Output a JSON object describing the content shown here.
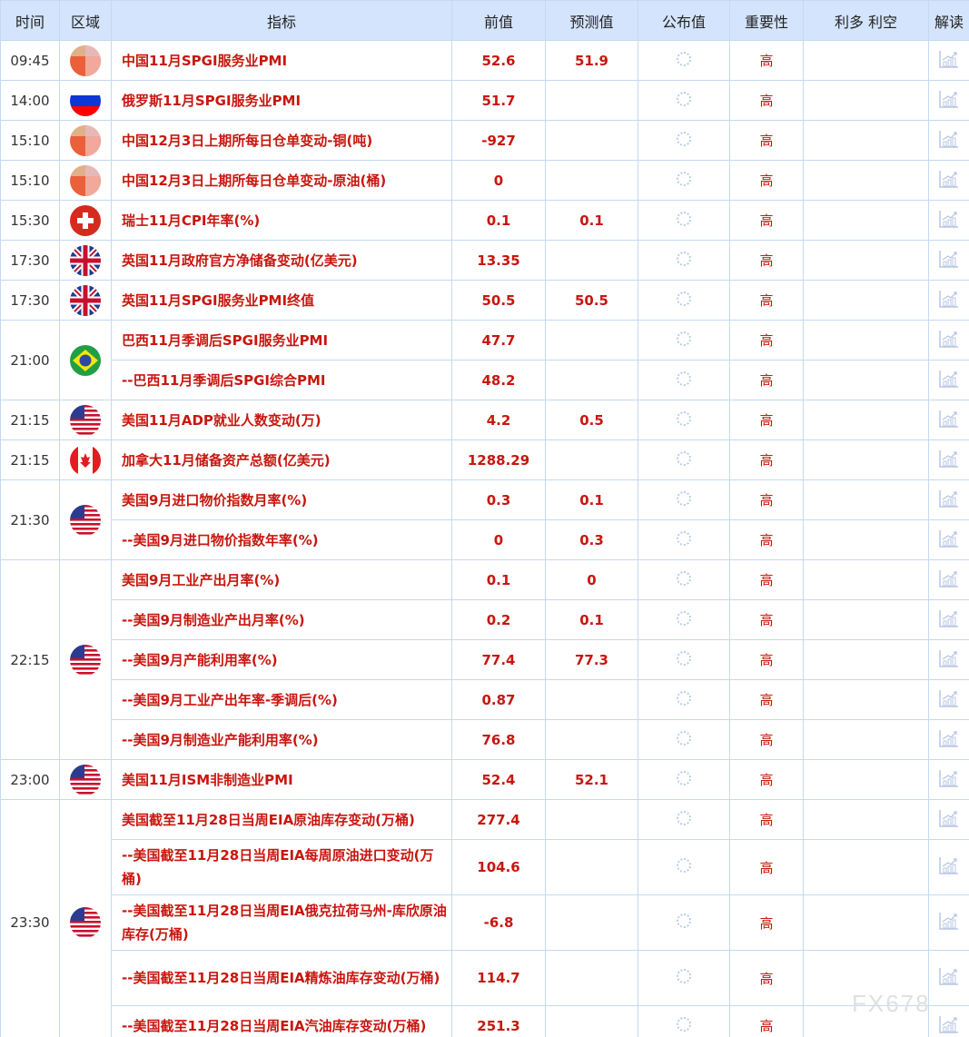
{
  "headers": [
    "时间",
    "区域",
    "指标",
    "前值",
    "预测值",
    "公布值",
    "重要性",
    "利多 利空",
    "解读"
  ],
  "colors": {
    "header_bg": "#d3e4fc",
    "border": "#c5d9f1",
    "accent_red": "#c8160e"
  },
  "groups": [
    {
      "time": "09:45",
      "flag": "china",
      "items": [
        {
          "name": "中国11月SPGI服务业PMI",
          "prev": "52.6",
          "fc": "51.9",
          "imp": "高"
        }
      ]
    },
    {
      "time": "14:00",
      "flag": "russia",
      "items": [
        {
          "name": "俄罗斯11月SPGI服务业PMI",
          "prev": "51.7",
          "fc": "",
          "imp": "高"
        }
      ]
    },
    {
      "time": "15:10",
      "flag": "china",
      "items": [
        {
          "name": "中国12月3日上期所每日仓单变动-铜(吨)",
          "prev": "-927",
          "fc": "",
          "imp": "高"
        }
      ]
    },
    {
      "time": "15:10",
      "flag": "china",
      "items": [
        {
          "name": "中国12月3日上期所每日仓单变动-原油(桶)",
          "prev": "0",
          "fc": "",
          "imp": "高"
        }
      ]
    },
    {
      "time": "15:30",
      "flag": "swiss",
      "items": [
        {
          "name": "瑞士11月CPI年率(%)",
          "prev": "0.1",
          "fc": "0.1",
          "imp": "高"
        }
      ]
    },
    {
      "time": "17:30",
      "flag": "uk",
      "items": [
        {
          "name": "英国11月政府官方净储备变动(亿美元)",
          "prev": "13.35",
          "fc": "",
          "imp": "高"
        }
      ]
    },
    {
      "time": "17:30",
      "flag": "uk",
      "items": [
        {
          "name": "英国11月SPGI服务业PMI终值",
          "prev": "50.5",
          "fc": "50.5",
          "imp": "高"
        }
      ]
    },
    {
      "time": "21:00",
      "flag": "brazil",
      "items": [
        {
          "name": "巴西11月季调后SPGI服务业PMI",
          "prev": "47.7",
          "fc": "",
          "imp": "高"
        },
        {
          "name": "--巴西11月季调后SPGI综合PMI",
          "prev": "48.2",
          "fc": "",
          "imp": "高"
        }
      ]
    },
    {
      "time": "21:15",
      "flag": "usa",
      "items": [
        {
          "name": "美国11月ADP就业人数变动(万)",
          "prev": "4.2",
          "fc": "0.5",
          "imp": "高"
        }
      ]
    },
    {
      "time": "21:15",
      "flag": "canada",
      "items": [
        {
          "name": "加拿大11月储备资产总额(亿美元)",
          "prev": "1288.29",
          "fc": "",
          "imp": "高"
        }
      ]
    },
    {
      "time": "21:30",
      "flag": "usa",
      "items": [
        {
          "name": "美国9月进口物价指数月率(%)",
          "prev": "0.3",
          "fc": "0.1",
          "imp": "高"
        },
        {
          "name": "--美国9月进口物价指数年率(%)",
          "prev": "0",
          "fc": "0.3",
          "imp": "高"
        }
      ]
    },
    {
      "time": "22:15",
      "flag": "usa",
      "items": [
        {
          "name": "美国9月工业产出月率(%)",
          "prev": "0.1",
          "fc": "0",
          "imp": "高"
        },
        {
          "name": "--美国9月制造业产出月率(%)",
          "prev": "0.2",
          "fc": "0.1",
          "imp": "高"
        },
        {
          "name": "--美国9月产能利用率(%)",
          "prev": "77.4",
          "fc": "77.3",
          "imp": "高"
        },
        {
          "name": "--美国9月工业产出年率-季调后(%)",
          "prev": "0.87",
          "fc": "",
          "imp": "高"
        },
        {
          "name": "--美国9月制造业产能利用率(%)",
          "prev": "76.8",
          "fc": "",
          "imp": "高"
        }
      ]
    },
    {
      "time": "23:00",
      "flag": "usa",
      "items": [
        {
          "name": "美国11月ISM非制造业PMI",
          "prev": "52.4",
          "fc": "52.1",
          "imp": "高"
        }
      ]
    },
    {
      "time": "23:30",
      "flag": "usa",
      "items": [
        {
          "name": "美国截至11月28日当周EIA原油库存变动(万桶)",
          "prev": "277.4",
          "fc": "",
          "imp": "高"
        },
        {
          "name": "--美国截至11月28日当周EIA每周原油进口变动(万桶)",
          "prev": "104.6",
          "fc": "",
          "imp": "高",
          "tall": true
        },
        {
          "name": "--美国截至11月28日当周EIA俄克拉荷马州-库欣原油库存(万桶)",
          "prev": "-6.8",
          "fc": "",
          "imp": "高",
          "tall": true
        },
        {
          "name": "--美国截至11月28日当周EIA精炼油库存变动(万桶)",
          "prev": "114.7",
          "fc": "",
          "imp": "高",
          "tall": true
        },
        {
          "name": "--美国截至11月28日当周EIA汽油库存变动(万桶)",
          "prev": "251.3",
          "fc": "",
          "imp": "高"
        }
      ]
    }
  ],
  "watermark": "FX678"
}
